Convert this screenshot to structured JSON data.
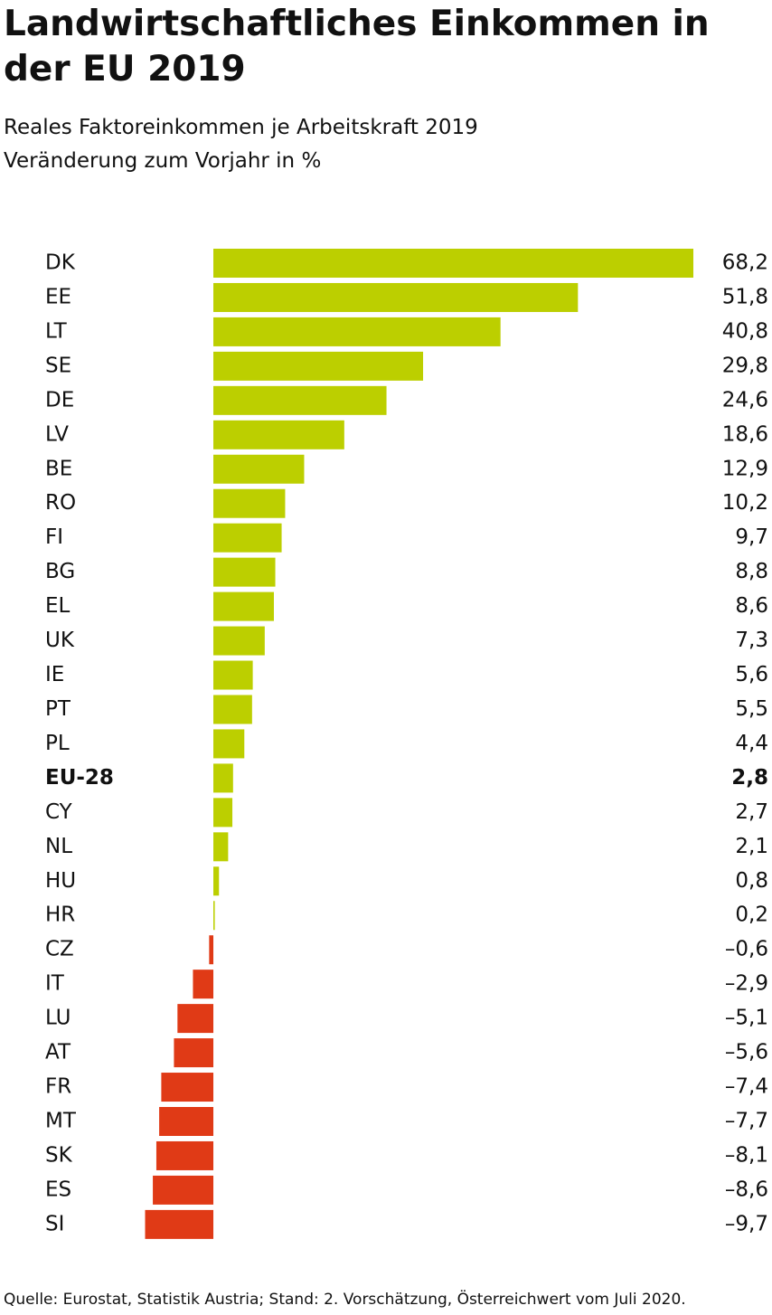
{
  "chart_data": {
    "type": "hbar",
    "title": "Landwirtschaftliches Einkommen in der EU 2019",
    "subtitle": [
      "Reales Faktoreinkommen je Arbeitskraft 2019",
      "Veränderung zum Vorjahr in %"
    ],
    "source": "Quelle: Eurostat, Statistik Austria; Stand: 2. Vorschätzung, Österreichwert vom Juli 2020.",
    "categories": [
      "DK",
      "EE",
      "LT",
      "SE",
      "DE",
      "LV",
      "BE",
      "RO",
      "FI",
      "BG",
      "EL",
      "UK",
      "IE",
      "PT",
      "PL",
      "EU-28",
      "CY",
      "NL",
      "HU",
      "HR",
      "CZ",
      "IT",
      "LU",
      "AT",
      "FR",
      "MT",
      "SK",
      "ES",
      "SI"
    ],
    "values": [
      68.2,
      51.8,
      40.8,
      29.8,
      24.6,
      18.6,
      12.9,
      10.2,
      9.7,
      8.8,
      8.6,
      7.3,
      5.6,
      5.5,
      4.4,
      2.8,
      2.7,
      2.1,
      0.8,
      0.2,
      -0.6,
      -2.9,
      -5.1,
      -5.6,
      -7.4,
      -7.7,
      -8.1,
      -8.6,
      -9.7
    ],
    "value_labels": [
      "68,2",
      "51,8",
      "40,8",
      "29,8",
      "24,6",
      "18,6",
      "12,9",
      "10,2",
      "9,7",
      "8,8",
      "8,6",
      "7,3",
      "5,6",
      "5,5",
      "4,4",
      "2,8",
      "2,7",
      "2,1",
      "0,8",
      "0,2",
      "–0,6",
      "–2,9",
      "–5,1",
      "–5,6",
      "–7,4",
      "–7,7",
      "–8,1",
      "–8,6",
      "–9,7"
    ],
    "positive_color": "#bccf00",
    "negative_color": "#e03a16",
    "bold": [
      "EU-28"
    ],
    "highlight": {
      "category": "AT",
      "color": "#e03a16"
    }
  }
}
